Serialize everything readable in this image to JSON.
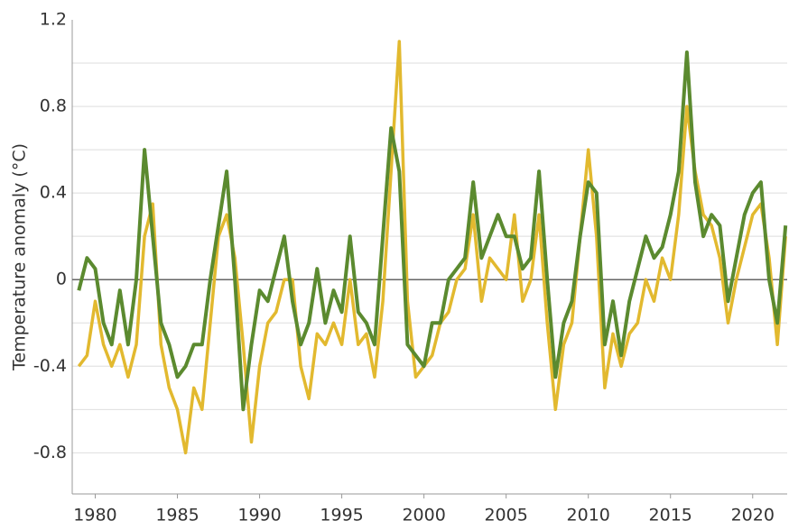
{
  "chart_data": {
    "type": "line",
    "ylabel": "Temperature anomaly (°C)",
    "x": [
      1979.0,
      1979.5,
      1980.0,
      1980.5,
      1981.0,
      1981.5,
      1982.0,
      1982.5,
      1983.0,
      1983.5,
      1984.0,
      1984.5,
      1985.0,
      1985.5,
      1986.0,
      1986.5,
      1987.0,
      1987.5,
      1988.0,
      1988.5,
      1989.0,
      1989.5,
      1990.0,
      1990.5,
      1991.0,
      1991.5,
      1992.0,
      1992.5,
      1993.0,
      1993.5,
      1994.0,
      1994.5,
      1995.0,
      1995.5,
      1996.0,
      1996.5,
      1997.0,
      1997.5,
      1998.0,
      1998.5,
      1999.0,
      1999.5,
      2000.0,
      2000.5,
      2001.0,
      2001.5,
      2002.0,
      2002.5,
      2003.0,
      2003.5,
      2004.0,
      2004.5,
      2005.0,
      2005.5,
      2006.0,
      2006.5,
      2007.0,
      2007.5,
      2008.0,
      2008.5,
      2009.0,
      2009.5,
      2010.0,
      2010.5,
      2011.0,
      2011.5,
      2012.0,
      2012.5,
      2013.0,
      2013.5,
      2014.0,
      2014.5,
      2015.0,
      2015.5,
      2016.0,
      2016.5,
      2017.0,
      2017.5,
      2018.0,
      2018.5,
      2019.0,
      2019.5,
      2020.0,
      2020.5,
      2021.0,
      2021.5,
      2022.0
    ],
    "series": [
      {
        "color": "#e2b92f",
        "values": [
          -0.4,
          -0.35,
          -0.1,
          -0.3,
          -0.4,
          -0.3,
          -0.45,
          -0.3,
          0.2,
          0.35,
          -0.3,
          -0.5,
          -0.6,
          -0.8,
          -0.5,
          -0.6,
          -0.2,
          0.2,
          0.3,
          0.1,
          -0.3,
          -0.75,
          -0.4,
          -0.2,
          -0.15,
          0.0,
          0.0,
          -0.4,
          -0.55,
          -0.25,
          -0.3,
          -0.2,
          -0.3,
          0.0,
          -0.3,
          -0.25,
          -0.45,
          -0.1,
          0.5,
          1.1,
          -0.1,
          -0.45,
          -0.4,
          -0.35,
          -0.2,
          -0.15,
          0.0,
          0.05,
          0.3,
          -0.1,
          0.1,
          0.05,
          0.0,
          0.3,
          -0.1,
          0.0,
          0.3,
          -0.2,
          -0.6,
          -0.3,
          -0.2,
          0.2,
          0.6,
          0.2,
          -0.5,
          -0.25,
          -0.4,
          -0.25,
          -0.2,
          0.0,
          -0.1,
          0.1,
          0.0,
          0.3,
          0.8,
          0.5,
          0.3,
          0.25,
          0.1,
          -0.2,
          0.0,
          0.15,
          0.3,
          0.35,
          0.1,
          -0.3,
          0.2
        ]
      },
      {
        "color": "#5b8a2f",
        "values": [
          -0.05,
          0.1,
          0.05,
          -0.2,
          -0.3,
          -0.05,
          -0.3,
          0.0,
          0.6,
          0.2,
          -0.2,
          -0.3,
          -0.45,
          -0.4,
          -0.3,
          -0.3,
          0.0,
          0.25,
          0.5,
          0.0,
          -0.6,
          -0.3,
          -0.05,
          -0.1,
          0.05,
          0.2,
          -0.1,
          -0.3,
          -0.2,
          0.05,
          -0.2,
          -0.05,
          -0.15,
          0.2,
          -0.15,
          -0.2,
          -0.3,
          0.2,
          0.7,
          0.5,
          -0.3,
          -0.35,
          -0.4,
          -0.2,
          -0.2,
          0.0,
          0.05,
          0.1,
          0.45,
          0.1,
          0.2,
          0.3,
          0.2,
          0.2,
          0.05,
          0.1,
          0.5,
          0.0,
          -0.45,
          -0.2,
          -0.1,
          0.2,
          0.45,
          0.4,
          -0.3,
          -0.1,
          -0.35,
          -0.1,
          0.05,
          0.2,
          0.1,
          0.15,
          0.3,
          0.5,
          1.05,
          0.45,
          0.2,
          0.3,
          0.25,
          -0.1,
          0.1,
          0.3,
          0.4,
          0.45,
          0.0,
          -0.2,
          0.25
        ]
      }
    ],
    "xlim": [
      1978.6,
      2022.1
    ],
    "xticks": [
      1980,
      1985,
      1990,
      1995,
      2000,
      2005,
      2010,
      2015,
      2020
    ],
    "ylim": [
      -0.99,
      1.2
    ],
    "yticks": [
      -0.8,
      -0.4,
      0,
      0.4,
      0.8,
      1.2
    ],
    "y_gridlines": [
      -0.8,
      -0.6,
      -0.4,
      -0.2,
      0.2,
      0.4,
      0.6,
      0.8,
      1.0
    ],
    "zero_line": 0,
    "grid": true
  }
}
